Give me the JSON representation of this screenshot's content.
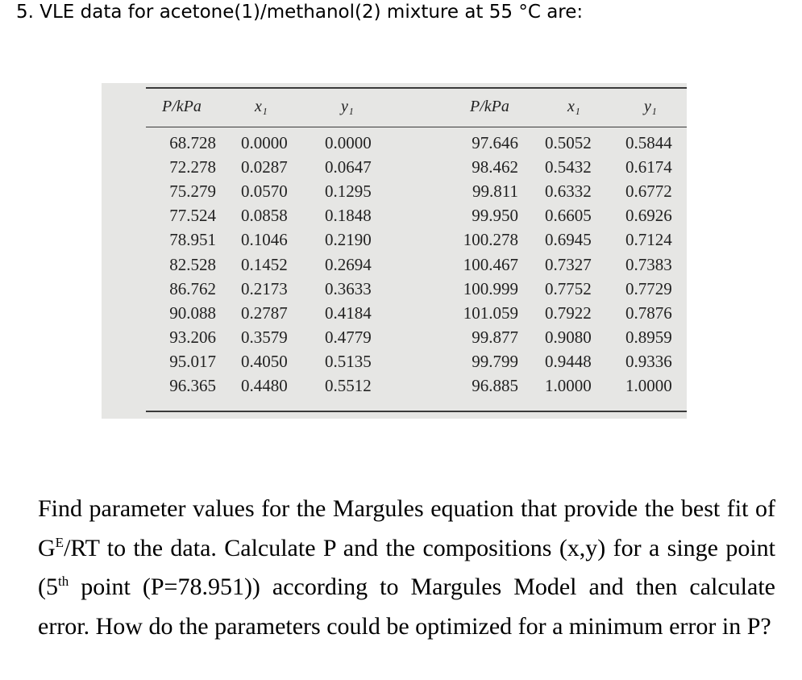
{
  "heading": "5. VLE data for acetone(1)/methanol(2) mixture at 55 °C are:",
  "table": {
    "headers": [
      "P/kPa",
      "x₁",
      "y₁",
      "P/kPa",
      "x₁",
      "y₁"
    ],
    "left": [
      [
        "68.728",
        "0.0000",
        "0.0000"
      ],
      [
        "72.278",
        "0.0287",
        "0.0647"
      ],
      [
        "75.279",
        "0.0570",
        "0.1295"
      ],
      [
        "77.524",
        "0.0858",
        "0.1848"
      ],
      [
        "78.951",
        "0.1046",
        "0.2190"
      ],
      [
        "82.528",
        "0.1452",
        "0.2694"
      ],
      [
        "86.762",
        "0.2173",
        "0.3633"
      ],
      [
        "90.088",
        "0.2787",
        "0.4184"
      ],
      [
        "93.206",
        "0.3579",
        "0.4779"
      ],
      [
        "95.017",
        "0.4050",
        "0.5135"
      ],
      [
        "96.365",
        "0.4480",
        "0.5512"
      ]
    ],
    "right": [
      [
        "97.646",
        "0.5052",
        "0.5844"
      ],
      [
        "98.462",
        "0.5432",
        "0.6174"
      ],
      [
        "99.811",
        "0.6332",
        "0.6772"
      ],
      [
        "99.950",
        "0.6605",
        "0.6926"
      ],
      [
        "100.278",
        "0.6945",
        "0.7124"
      ],
      [
        "100.467",
        "0.7327",
        "0.7383"
      ],
      [
        "100.999",
        "0.7752",
        "0.7729"
      ],
      [
        "101.059",
        "0.7922",
        "0.7876"
      ],
      [
        "99.877",
        "0.9080",
        "0.8959"
      ],
      [
        "99.799",
        "0.9448",
        "0.9336"
      ],
      [
        "96.885",
        "1.0000",
        "1.0000"
      ]
    ]
  },
  "question": {
    "p1": "Find parameter values for the Margules equation that provide the best fit of G",
    "sup1": "E",
    "p2": "/RT to the data. Calculate P and the compositions (x,y) for a singe point (5",
    "sup2": "th",
    "p3": " point (P=78.951)) according to Margules Model and then calculate error. How do the parameters could be optimized for a minimum error in P?"
  }
}
